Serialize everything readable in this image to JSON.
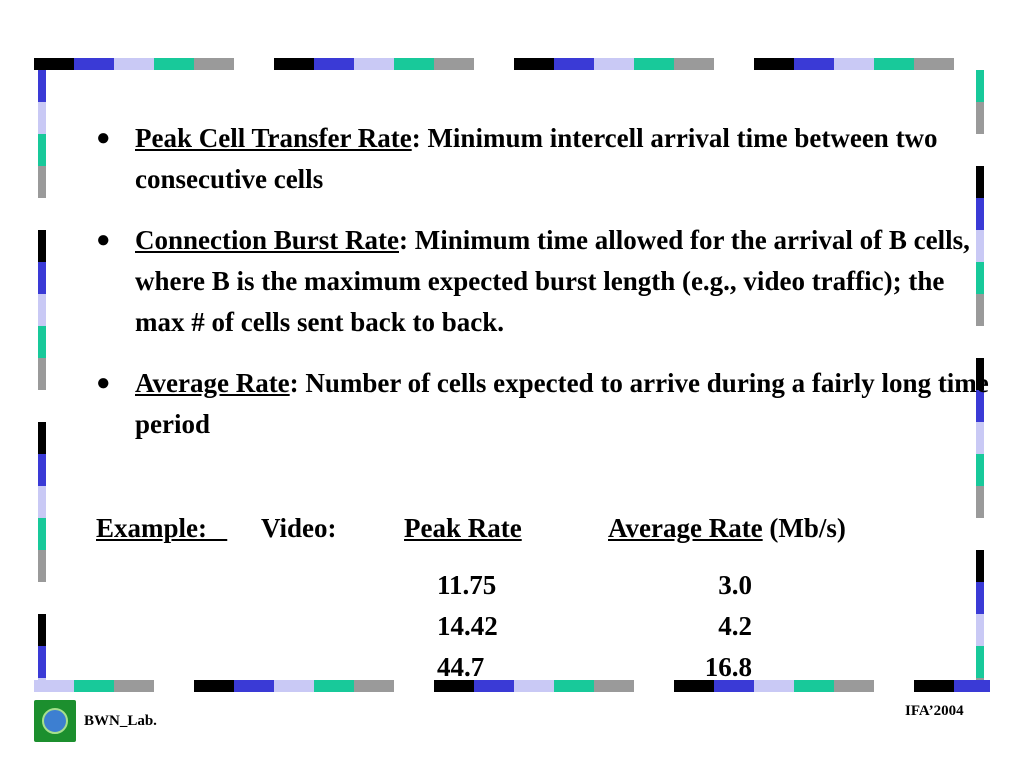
{
  "bullets": [
    {
      "term": "Peak Cell Transfer Rate",
      "text": ": Minimum intercell arrival time between two consecutive cells"
    },
    {
      "term": "Connection Burst Rate",
      "text": ": Minimum time allowed for the arrival of B cells, where B is the maximum expected burst length (e.g., video traffic); the max # of cells sent back to back."
    },
    {
      "term": "Average Rate",
      "text": ": Number of cells expected to arrive during a fairly long time period"
    }
  ],
  "example": {
    "label": "Example:   ",
    "type": "Video:",
    "peak_header": "Peak Rate",
    "avg_header": "Average Rate",
    "unit": " (Mb/s)",
    "rows": [
      {
        "peak": "11.75",
        "avg": "3.0"
      },
      {
        "peak": "14.42",
        "avg": "4.2"
      },
      {
        "peak": "44.7",
        "avg": "16.8"
      }
    ]
  },
  "footer": {
    "lab": "BWN_Lab.",
    "event": "IFA’2004"
  },
  "border_colors": [
    "#000000",
    "#3a3ad6",
    "#c9c9f5",
    "#18c99a",
    "#9a9a9a",
    "#ffffff"
  ]
}
